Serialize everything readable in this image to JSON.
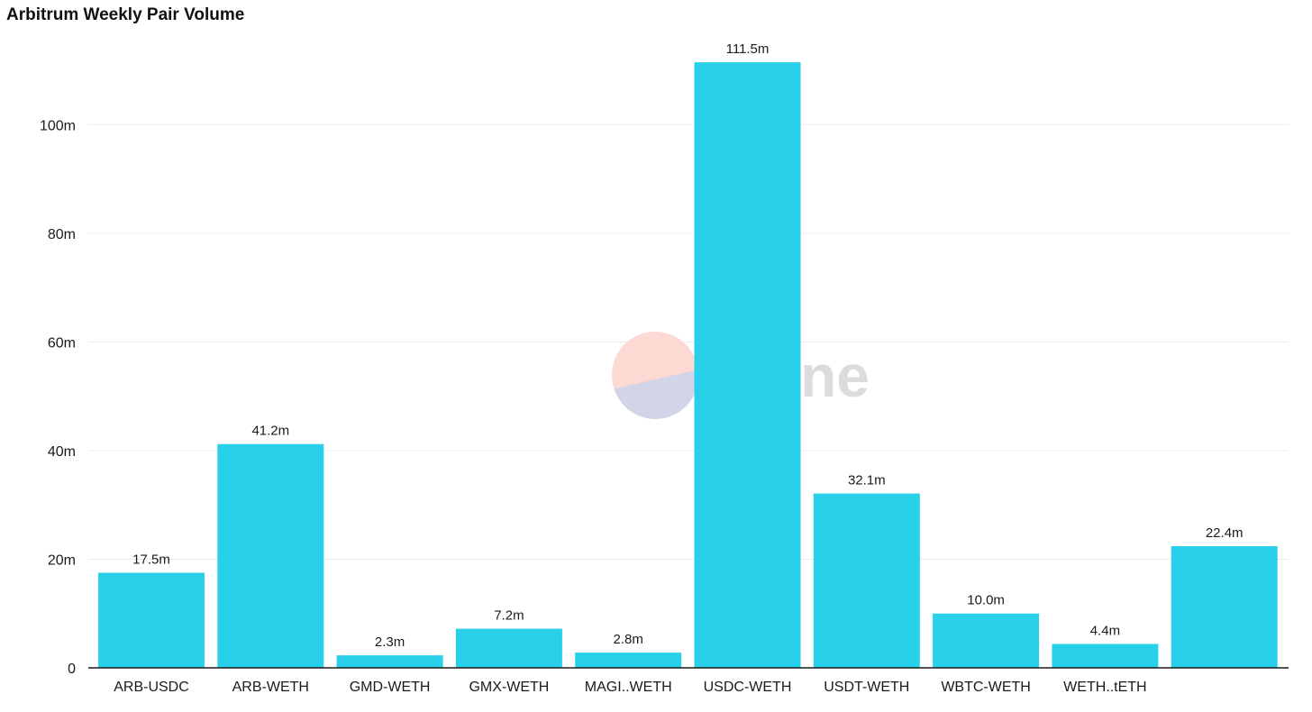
{
  "watermark": {
    "text": "Dune",
    "colors": {
      "top": "#fcd9d3",
      "bottom": "#d2d4e8",
      "text": "#dcdcdc"
    }
  },
  "chart_data": {
    "type": "bar",
    "title": "Arbitrum Weekly Pair Volume",
    "xlabel": "",
    "ylabel": "",
    "categories": [
      "ARB-USDC",
      "ARB-WETH",
      "GMD-WETH",
      "GMX-WETH",
      "MAGI..WETH",
      "USDC-WETH",
      "USDT-WETH",
      "WBTC-WETH",
      "WETH..tETH",
      ""
    ],
    "values": [
      17.5,
      41.2,
      2.3,
      7.2,
      2.8,
      111.5,
      32.1,
      10.0,
      4.4,
      22.4
    ],
    "value_labels": [
      "17.5m",
      "41.2m",
      "2.3m",
      "7.2m",
      "2.8m",
      "111.5m",
      "32.1m",
      "10.0m",
      "4.4m",
      "22.4m"
    ],
    "ylim": [
      0,
      115
    ],
    "yticks": [
      0,
      20,
      40,
      60,
      80,
      100
    ],
    "ytick_labels": [
      "0",
      "20m",
      "40m",
      "60m",
      "80m",
      "100m"
    ],
    "grid": true,
    "legend": "none",
    "bar_color": "#29d0ea",
    "grid_color": "#ececec",
    "axis_color": "#1a1a1a"
  }
}
